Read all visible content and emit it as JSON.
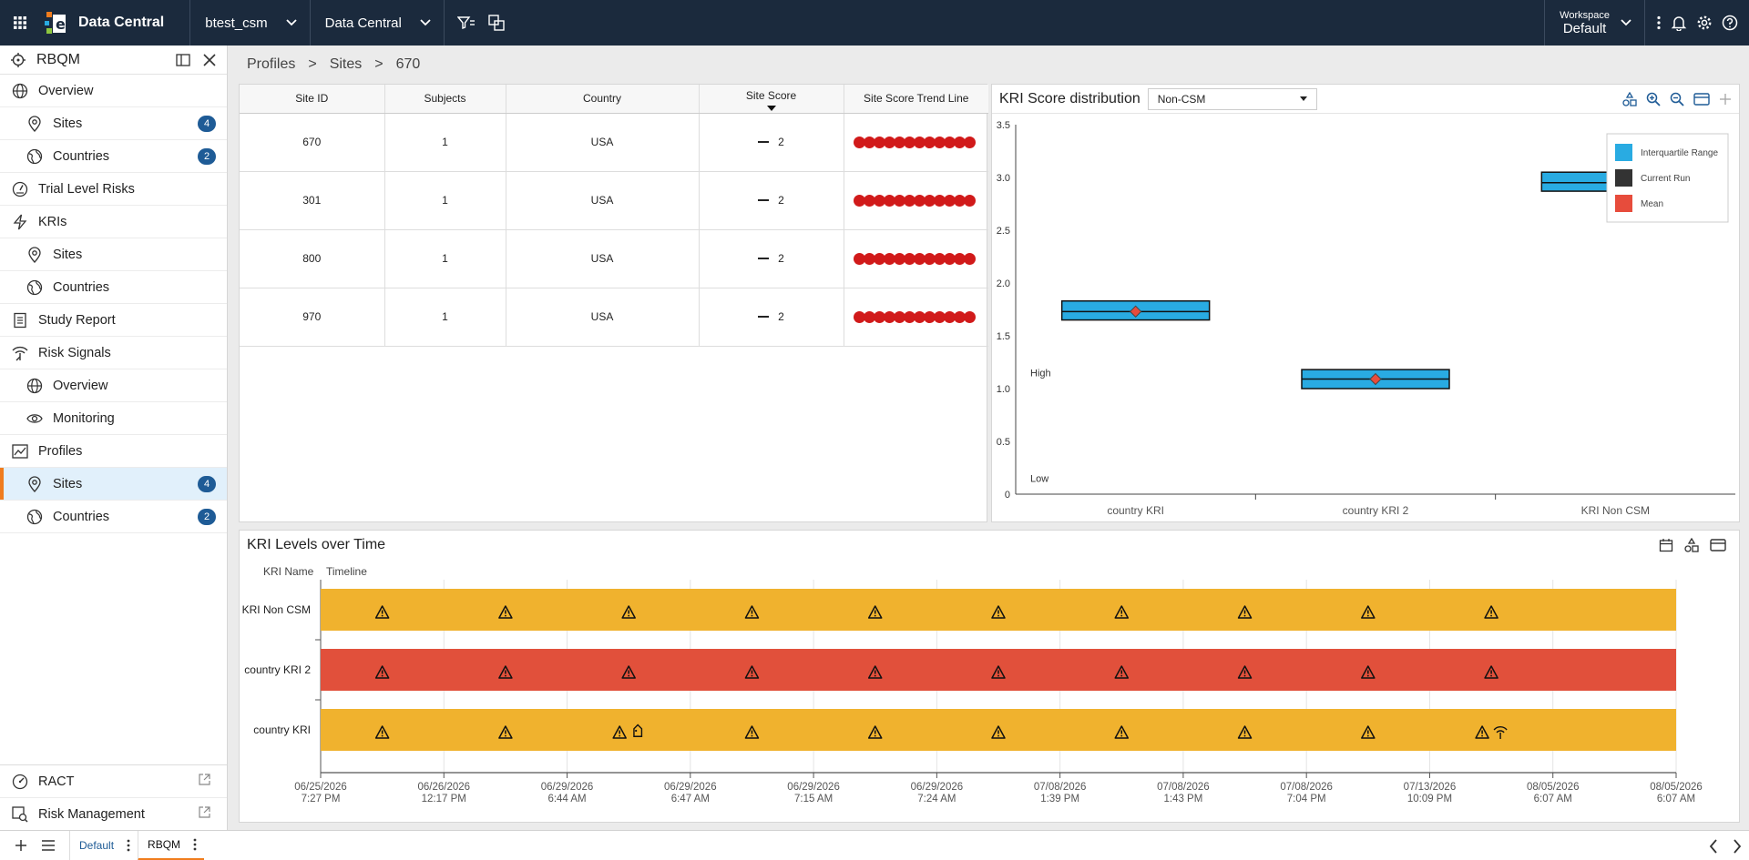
{
  "topbar": {
    "app_name": "Data Central",
    "study": "btest_csm",
    "module": "Data Central",
    "workspace_label": "Workspace",
    "workspace_value": "Default"
  },
  "sidebar": {
    "title": "RBQM",
    "items": [
      {
        "label": "Overview",
        "icon": "globe-icon",
        "level": 0
      },
      {
        "label": "Sites",
        "icon": "pin-icon",
        "level": 1,
        "badge": "4"
      },
      {
        "label": "Countries",
        "icon": "world-icon",
        "level": 1,
        "badge": "2"
      },
      {
        "label": "Trial Level Risks",
        "icon": "gauge-icon",
        "level": 0
      },
      {
        "label": "KRIs",
        "icon": "bolt-icon",
        "level": 0
      },
      {
        "label": "Sites",
        "icon": "pin-icon",
        "level": 1
      },
      {
        "label": "Countries",
        "icon": "world-icon",
        "level": 1
      },
      {
        "label": "Study Report",
        "icon": "document-icon",
        "level": 0
      },
      {
        "label": "Risk Signals",
        "icon": "signal-icon",
        "level": 0
      },
      {
        "label": "Overview",
        "icon": "globe-icon",
        "level": 1
      },
      {
        "label": "Monitoring",
        "icon": "eye-icon",
        "level": 1
      },
      {
        "label": "Profiles",
        "icon": "chart-icon",
        "level": 0
      },
      {
        "label": "Sites",
        "icon": "pin-icon",
        "level": 1,
        "badge": "4",
        "active": true
      },
      {
        "label": "Countries",
        "icon": "world-icon",
        "level": 1,
        "badge": "2"
      }
    ],
    "bottom_items": [
      {
        "label": "RACT",
        "icon": "ract-icon"
      },
      {
        "label": "Risk Management",
        "icon": "risk-management-icon"
      }
    ]
  },
  "breadcrumb": {
    "items": [
      "Profiles",
      "Sites",
      "670"
    ],
    "separator": ">"
  },
  "site_table": {
    "columns": [
      "Site ID",
      "Subjects",
      "Country",
      "Site Score",
      "Site Score Trend Line"
    ],
    "rows": [
      {
        "site_id": "670",
        "subjects": "1",
        "country": "USA",
        "score": "2",
        "trend_points": 12
      },
      {
        "site_id": "301",
        "subjects": "1",
        "country": "USA",
        "score": "2",
        "trend_points": 12
      },
      {
        "site_id": "800",
        "subjects": "1",
        "country": "USA",
        "score": "2",
        "trend_points": 12
      },
      {
        "site_id": "970",
        "subjects": "1",
        "country": "USA",
        "score": "2",
        "trend_points": 12
      }
    ]
  },
  "kri_distribution": {
    "title": "KRI Score distribution",
    "filter_value": "Non-CSM",
    "chart_data": {
      "type": "box",
      "categories": [
        "country KRI",
        "country KRI 2",
        "KRI Non CSM"
      ],
      "ylim": [
        0,
        3.5
      ],
      "yticks": [
        "0",
        "0.5",
        "1.0",
        "1.5",
        "2.0",
        "2.5",
        "3.0",
        "3.5"
      ],
      "band_labels": [
        {
          "text": "High",
          "y": 1.15
        },
        {
          "text": "Low",
          "y": 0.15
        }
      ],
      "boxes": [
        {
          "category": "country KRI",
          "q1": 1.65,
          "q3": 1.83,
          "current": 1.73,
          "mean": 1.73
        },
        {
          "category": "country KRI 2",
          "q1": 1.0,
          "q3": 1.18,
          "current": 1.09,
          "mean": 1.09
        },
        {
          "category": "KRI Non CSM",
          "q1": 2.87,
          "q3": 3.05,
          "current": 2.95,
          "mean": null
        }
      ],
      "legend": [
        {
          "name": "Interquartile Range",
          "color": "#29abe2"
        },
        {
          "name": "Current Run",
          "color": "#333333"
        },
        {
          "name": "Mean",
          "color": "#e74c3c"
        }
      ],
      "legend_position": "top-right"
    }
  },
  "kri_levels": {
    "title": "KRI Levels over Time",
    "col_name": "KRI Name",
    "col_timeline": "Timeline",
    "chart_data": {
      "type": "timeline",
      "x_ticks": [
        {
          "date": "06/25/2026",
          "time": "7:27 PM"
        },
        {
          "date": "06/26/2026",
          "time": "12:17 PM"
        },
        {
          "date": "06/29/2026",
          "time": "6:44 AM"
        },
        {
          "date": "06/29/2026",
          "time": "6:47 AM"
        },
        {
          "date": "06/29/2026",
          "time": "7:15 AM"
        },
        {
          "date": "06/29/2026",
          "time": "7:24 AM"
        },
        {
          "date": "07/08/2026",
          "time": "1:39 PM"
        },
        {
          "date": "07/08/2026",
          "time": "1:43 PM"
        },
        {
          "date": "07/08/2026",
          "time": "7:04 PM"
        },
        {
          "date": "07/13/2026",
          "time": "10:09 PM"
        },
        {
          "date": "08/05/2026",
          "time": "6:07 AM"
        },
        {
          "date": "08/05/2026",
          "time": "6:07 AM"
        }
      ],
      "rows": [
        {
          "name": "KRI Non CSM",
          "color": "#f0b22e",
          "level": "medium",
          "markers": 10
        },
        {
          "name": "country KRI 2",
          "color": "#e1503b",
          "level": "high",
          "markers": 10
        },
        {
          "name": "country KRI",
          "color": "#f0b22e",
          "level": "medium",
          "markers": 10,
          "extra_icons": [
            {
              "after": 3,
              "icon": "tag-icon"
            },
            {
              "after": 10,
              "icon": "signal-icon"
            }
          ]
        }
      ]
    }
  },
  "bottom_tabs": [
    {
      "label": "Default",
      "active": false
    },
    {
      "label": "RBQM",
      "active": true
    }
  ]
}
